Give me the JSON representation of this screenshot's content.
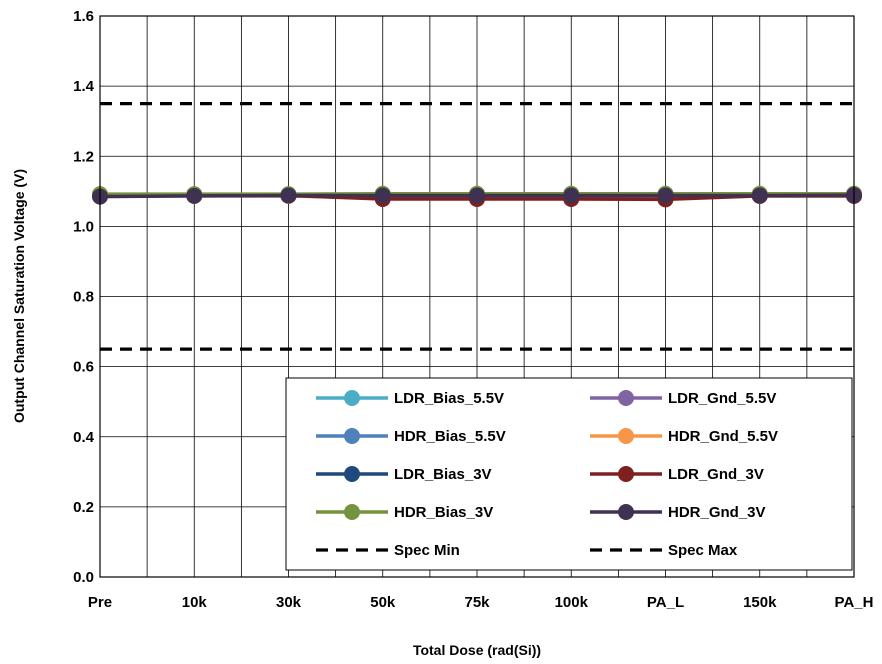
{
  "chart_data": {
    "type": "line",
    "title": "",
    "xlabel": "Total Dose (rad(Si))",
    "ylabel": "Output Channel Saturation Voltage  (V)",
    "categories": [
      "Pre",
      "10k",
      "30k",
      "50k",
      "75k",
      "100k",
      "PA_L",
      "150k",
      "PA_H"
    ],
    "ylim": [
      0,
      1.6
    ],
    "yticks": [
      "0.0",
      "0.2",
      "0.4",
      "0.6",
      "0.8",
      "1.0",
      "1.2",
      "1.4",
      "1.6"
    ],
    "grid": true,
    "legend_position": "bottom-right",
    "series": [
      {
        "name": "LDR_Bias_5.5V",
        "color": "#4bacc6",
        "marker": "circle",
        "values": [
          1.09,
          1.09,
          1.09,
          1.09,
          1.09,
          1.09,
          1.09,
          1.09,
          1.09
        ]
      },
      {
        "name": "LDR_Gnd_5.5V",
        "color": "#8064a2",
        "marker": "circle",
        "values": [
          1.087,
          1.087,
          1.087,
          1.087,
          1.087,
          1.087,
          1.087,
          1.087,
          1.087
        ]
      },
      {
        "name": "HDR_Bias_5.5V",
        "color": "#4f81bd",
        "marker": "circle",
        "values": [
          1.09,
          1.09,
          1.09,
          1.09,
          1.09,
          1.09,
          1.09,
          1.09,
          1.09
        ]
      },
      {
        "name": "HDR_Gnd_5.5V",
        "color": "#f79646",
        "marker": "circle",
        "values": [
          1.087,
          1.087,
          1.087,
          1.08,
          1.08,
          1.08,
          1.08,
          1.087,
          1.087
        ]
      },
      {
        "name": "LDR_Bias_3V",
        "color": "#1f497d",
        "marker": "circle",
        "values": [
          1.088,
          1.088,
          1.088,
          1.088,
          1.088,
          1.088,
          1.088,
          1.088,
          1.088
        ]
      },
      {
        "name": "LDR_Gnd_3V",
        "color": "#7f2020",
        "marker": "circle",
        "values": [
          1.087,
          1.088,
          1.088,
          1.078,
          1.078,
          1.078,
          1.077,
          1.087,
          1.087
        ]
      },
      {
        "name": "HDR_Bias_3V",
        "color": "#76923c",
        "marker": "circle",
        "values": [
          1.092,
          1.092,
          1.092,
          1.093,
          1.093,
          1.093,
          1.093,
          1.093,
          1.093
        ]
      },
      {
        "name": "HDR_Gnd_3V",
        "color": "#403152",
        "marker": "circle",
        "values": [
          1.085,
          1.087,
          1.088,
          1.088,
          1.088,
          1.088,
          1.088,
          1.088,
          1.089
        ]
      }
    ],
    "reference_lines": [
      {
        "name": "Spec Min",
        "value": 0.65,
        "color": "#000000",
        "style": "dashed"
      },
      {
        "name": "Spec Max",
        "value": 1.35,
        "color": "#000000",
        "style": "dashed"
      }
    ]
  }
}
